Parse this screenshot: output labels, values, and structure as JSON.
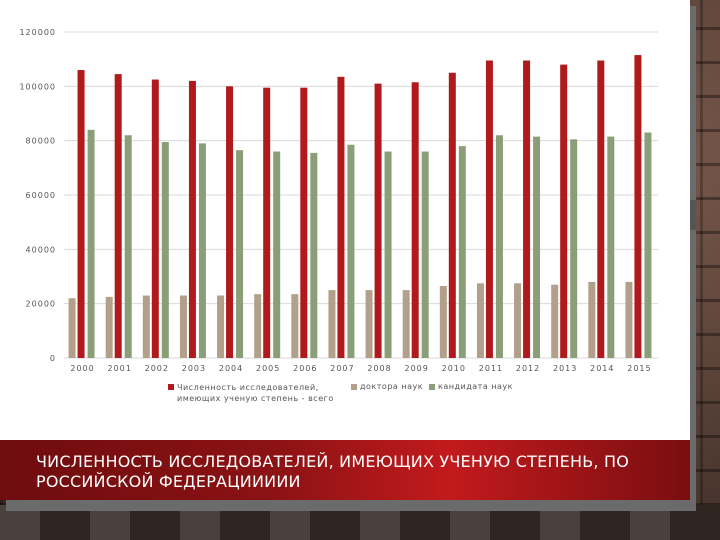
{
  "title": "ЧИСЛЕННОСТЬ ИССЛЕДОВАТЕЛЕЙ, ИМЕЮЩИХ УЧЕНУЮ СТЕПЕНЬ, ПО РОССИЙСКОЙ ФЕДЕРАЦИИИИИ",
  "colors": {
    "series_total": "#b01a1c",
    "series_doctors": "#b2a08a",
    "series_candidates": "#8a9f78",
    "title_band": "#8c1214"
  },
  "chart_data": {
    "type": "bar",
    "categories": [
      "2000",
      "2001",
      "2002",
      "2003",
      "2004",
      "2005",
      "2006",
      "2007",
      "2008",
      "2009",
      "2010",
      "2011",
      "2012",
      "2013",
      "2014",
      "2015"
    ],
    "series": [
      {
        "name": "Численность исследователей, имеющих ученую степень - всего",
        "color": "#b01a1c",
        "values": [
          106000,
          104500,
          102500,
          102000,
          100000,
          99500,
          99500,
          103500,
          101000,
          101500,
          105000,
          109500,
          109500,
          108000,
          109500,
          111500
        ]
      },
      {
        "name": "доктора наук",
        "color": "#b2a08a",
        "values": [
          22000,
          22500,
          23000,
          23000,
          23000,
          23500,
          23500,
          25000,
          25000,
          25000,
          26500,
          27500,
          27500,
          27000,
          28000,
          28000
        ]
      },
      {
        "name": "кандидата наук",
        "color": "#8a9f78",
        "values": [
          84000,
          82000,
          79500,
          79000,
          76500,
          76000,
          75500,
          78500,
          76000,
          76000,
          78000,
          82000,
          81500,
          80500,
          81500,
          83000
        ]
      }
    ],
    "yticks": [
      "0",
      "20000",
      "40000",
      "60000",
      "80000",
      "100000",
      "120000"
    ],
    "ylim": [
      0,
      120000
    ],
    "grid": true,
    "legend": "bottom",
    "xlabel": "",
    "ylabel": ""
  }
}
